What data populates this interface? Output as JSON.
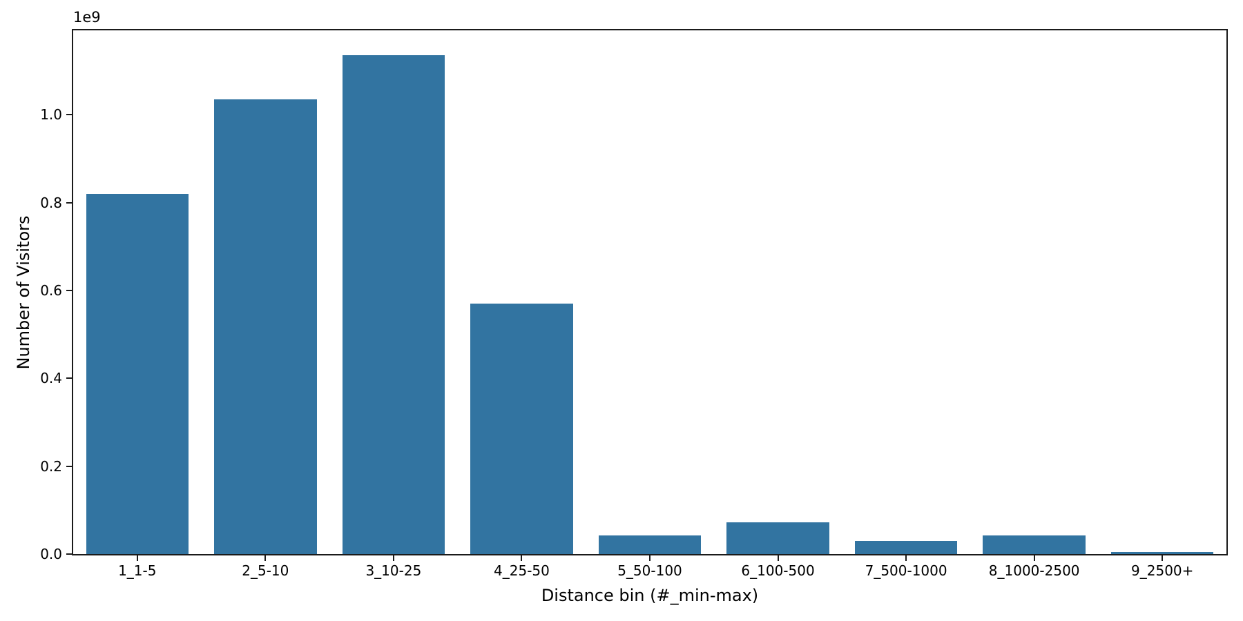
{
  "figure": {
    "offset_text": "1e9",
    "xlabel": "Distance bin (#_min-max)",
    "ylabel": "Number of Visitors"
  },
  "chart_data": {
    "type": "bar",
    "title": "",
    "xlabel": "Distance bin (#_min-max)",
    "ylabel": "Number of Visitors",
    "offset_text": "1e9",
    "categories": [
      "1_1-5",
      "2_5-10",
      "3_10-25",
      "4_25-50",
      "5_50-100",
      "6_100-500",
      "7_500-1000",
      "8_1000-2500",
      "9_2500+"
    ],
    "values": [
      820000000,
      1035000000,
      1135000000,
      570000000,
      42000000,
      72000000,
      30000000,
      42000000,
      4000000
    ],
    "ylim": [
      0,
      1192000000
    ],
    "yticks": [
      0,
      200000000,
      400000000,
      600000000,
      800000000,
      1000000000
    ],
    "ytick_labels": [
      "0.0",
      "0.2",
      "0.4",
      "0.6",
      "0.8",
      "1.0"
    ],
    "bar_color": "#3274a1",
    "bar_width_fraction": 0.8,
    "grid": false,
    "legend": null
  }
}
